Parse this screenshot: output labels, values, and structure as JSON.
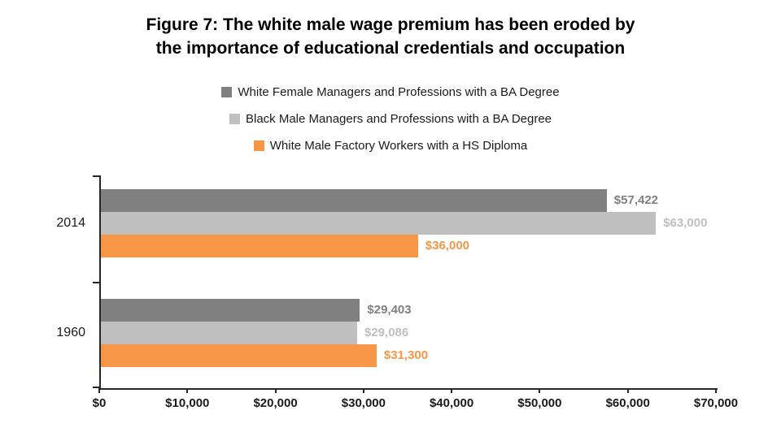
{
  "title": {
    "line1": "Figure 7: The white male wage premium has been eroded by",
    "line2": "the importance of educational credentials and occupation"
  },
  "chart_data": {
    "type": "bar",
    "orientation": "horizontal",
    "title": "Figure 7: The white male wage premium has been eroded by the importance of educational credentials and occupation",
    "categories": [
      "2014",
      "1960"
    ],
    "series": [
      {
        "name": "White Female Managers and Professions with a BA Degree",
        "color": "#808080",
        "values": [
          57422,
          29403
        ],
        "labels": [
          "$57,422",
          "$29,403"
        ]
      },
      {
        "name": "Black Male Managers and Professions with a BA Degree",
        "color": "#bfbfbf",
        "values": [
          63000,
          29086
        ],
        "labels": [
          "$63,000",
          "$29,086"
        ]
      },
      {
        "name": "White Male Factory Workers with a HS Diploma",
        "color": "#f79646",
        "values": [
          36000,
          31300
        ],
        "labels": [
          "$36,000",
          "$31,300"
        ]
      }
    ],
    "xlim": [
      0,
      70000
    ],
    "x_tick_values": [
      0,
      10000,
      20000,
      30000,
      40000,
      50000,
      60000,
      70000
    ],
    "x_ticks": [
      "$0",
      "$10,000",
      "$20,000",
      "$30,000",
      "$40,000",
      "$50,000",
      "$60,000",
      "$70,000"
    ],
    "legend_position": "top",
    "grid": false,
    "axis_color": "#262626"
  }
}
